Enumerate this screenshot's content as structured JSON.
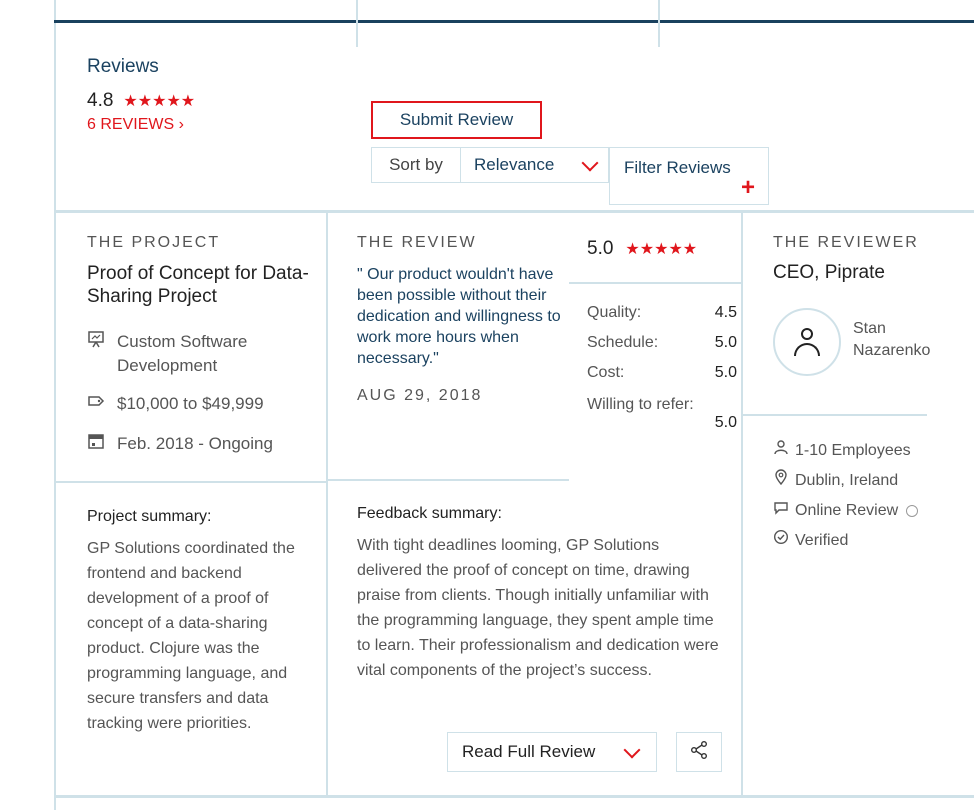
{
  "reviews": {
    "title": "Reviews",
    "rating": "4.8",
    "stars": "★★★★★",
    "count_link": "6 REVIEWS ›",
    "submit_label": "Submit Review",
    "sort_label": "Sort by",
    "sort_value": "Relevance",
    "filter_label": "Filter Reviews",
    "filter_plus": "+"
  },
  "project": {
    "heading": "THE PROJECT",
    "title": "Proof of Concept for Data-Sharing Project",
    "service": "Custom Software Development",
    "budget": "$10,000 to $49,999",
    "dates": "Feb. 2018 - Ongoing",
    "summary_label": "Project summary:",
    "summary_text": "GP Solutions coordinated the frontend and backend development of a proof of concept of a data-sharing product. Clojure was the programming language, and secure transfers and data tracking were priorities."
  },
  "review": {
    "heading": "THE REVIEW",
    "quote": "\" Our product wouldn't have been possible without their dedication and willingness to work more hours when necessary.\"",
    "date": "AUG 29, 2018",
    "overall": "5.0",
    "stars": "★★★★★",
    "scores": [
      {
        "label": "Quality:",
        "value": "4.5"
      },
      {
        "label": "Schedule:",
        "value": "5.0"
      },
      {
        "label": "Cost:",
        "value": "5.0"
      }
    ],
    "refer_label": "Willing to refer:",
    "refer_value": "5.0",
    "feedback_label": "Feedback summary:",
    "feedback_text": "With tight deadlines looming, GP Solutions delivered the proof of concept on time, drawing praise from clients. Though initially unfamiliar with the programming language, they spent ample time to learn. Their professionalism and dedication were vital components of the project’s success.",
    "read_full_label": "Read Full Review"
  },
  "reviewer": {
    "heading": "THE REVIEWER",
    "role": "CEO, Piprate",
    "first_name": "Stan",
    "last_name": "Nazarenko",
    "employees": "1-10 Employees",
    "location": "Dublin, Ireland",
    "source": "Online Review",
    "verified": "Verified"
  },
  "icons": {
    "service": "presentation-icon",
    "budget": "tag-icon",
    "dates": "calendar-icon",
    "employees": "person-icon",
    "location": "location-pin-icon",
    "source": "chat-bubble-icon",
    "verified": "check-circle-icon",
    "share": "share-icon"
  },
  "colors": {
    "accent_red": "#e0161c",
    "navy": "#1b4260",
    "border": "#cfe1e8"
  }
}
